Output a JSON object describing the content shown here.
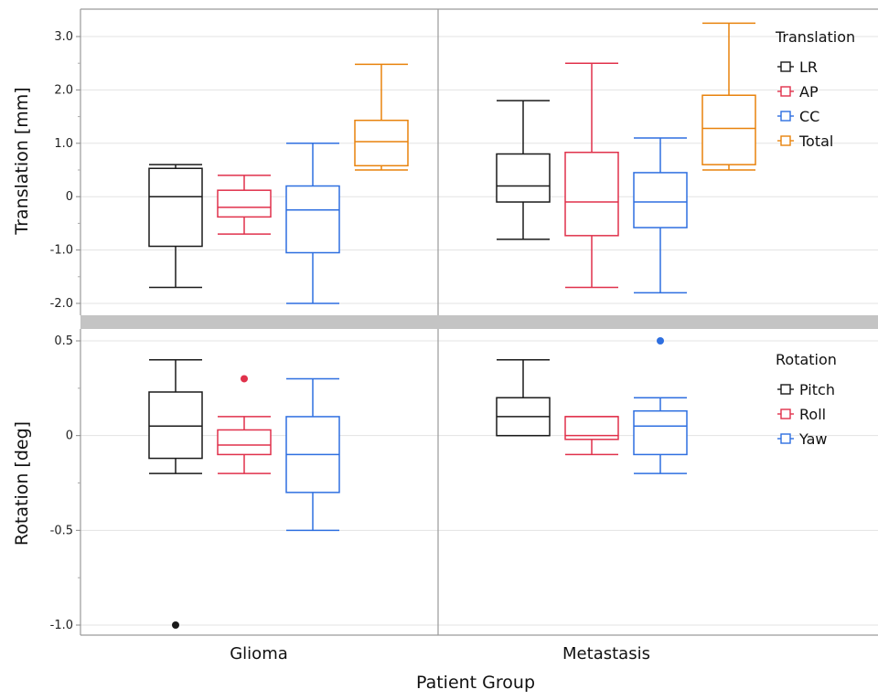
{
  "chart_data": {
    "type": "box",
    "xlabel": "Patient Group",
    "groups": [
      "Glioma",
      "Metastasis"
    ],
    "colors": {
      "LR": "#1a1a1a",
      "AP": "#e0314b",
      "CC": "#2e6fe0",
      "Total": "#e8820c",
      "Pitch": "#1a1a1a",
      "Roll": "#e0314b",
      "Yaw": "#2e6fe0"
    },
    "panels": [
      {
        "id": "translation",
        "ylabel": "Translation [mm]",
        "ylim": [
          -2.2,
          3.5
        ],
        "ticks": [
          {
            "value": 3.0,
            "label": "3.0"
          },
          {
            "value": 2.0,
            "label": "2.0"
          },
          {
            "value": 1.0,
            "label": "1.0"
          },
          {
            "value": 0,
            "label": "0"
          },
          {
            "value": -1.0,
            "label": "-1.0"
          },
          {
            "value": -2.0,
            "label": "-2.0"
          }
        ],
        "minor_ticks": [
          2.5,
          1.5,
          0.5,
          -0.5,
          -1.5
        ],
        "legend_title": "Translation",
        "series": [
          {
            "name": "LR",
            "boxes": [
              {
                "min": -1.7,
                "q1": -0.93,
                "median": 0.0,
                "q3": 0.53,
                "max": 0.6,
                "outliers": []
              },
              {
                "min": -0.8,
                "q1": -0.1,
                "median": 0.2,
                "q3": 0.8,
                "max": 1.8,
                "outliers": []
              }
            ]
          },
          {
            "name": "AP",
            "boxes": [
              {
                "min": -0.7,
                "q1": -0.38,
                "median": -0.2,
                "q3": 0.12,
                "max": 0.4,
                "outliers": []
              },
              {
                "min": -1.7,
                "q1": -0.73,
                "median": -0.1,
                "q3": 0.83,
                "max": 2.5,
                "outliers": []
              }
            ]
          },
          {
            "name": "CC",
            "boxes": [
              {
                "min": -2.0,
                "q1": -1.05,
                "median": -0.25,
                "q3": 0.2,
                "max": 1.0,
                "outliers": []
              },
              {
                "min": -1.8,
                "q1": -0.58,
                "median": -0.1,
                "q3": 0.45,
                "max": 1.1,
                "outliers": []
              }
            ]
          },
          {
            "name": "Total",
            "boxes": [
              {
                "min": 0.5,
                "q1": 0.58,
                "median": 1.03,
                "q3": 1.43,
                "max": 2.48,
                "outliers": []
              },
              {
                "min": 0.5,
                "q1": 0.6,
                "median": 1.28,
                "q3": 1.9,
                "max": 3.25,
                "outliers": []
              }
            ]
          }
        ]
      },
      {
        "id": "rotation",
        "ylabel": "Rotation [deg]",
        "ylim": [
          -1.05,
          0.55
        ],
        "ticks": [
          {
            "value": 0.5,
            "label": "0.5"
          },
          {
            "value": 0,
            "label": "0"
          },
          {
            "value": -0.5,
            "label": "-0.5"
          },
          {
            "value": -1.0,
            "label": "-1.0"
          }
        ],
        "minor_ticks": [
          0.25,
          -0.25,
          -0.75
        ],
        "legend_title": "Rotation",
        "series": [
          {
            "name": "Pitch",
            "boxes": [
              {
                "min": -0.2,
                "q1": -0.12,
                "median": 0.05,
                "q3": 0.23,
                "max": 0.4,
                "outliers": [
                  -1.0
                ]
              },
              {
                "min": 0.0,
                "q1": 0.0,
                "median": 0.1,
                "q3": 0.2,
                "max": 0.4,
                "outliers": []
              }
            ]
          },
          {
            "name": "Roll",
            "boxes": [
              {
                "min": -0.2,
                "q1": -0.1,
                "median": -0.05,
                "q3": 0.03,
                "max": 0.1,
                "outliers": [
                  0.3
                ]
              },
              {
                "min": -0.1,
                "q1": -0.02,
                "median": 0.0,
                "q3": 0.1,
                "max": 0.1,
                "outliers": []
              }
            ]
          },
          {
            "name": "Yaw",
            "boxes": [
              {
                "min": -0.5,
                "q1": -0.3,
                "median": -0.1,
                "q3": 0.1,
                "max": 0.3,
                "outliers": []
              },
              {
                "min": -0.2,
                "q1": -0.1,
                "median": 0.05,
                "q3": 0.13,
                "max": 0.2,
                "outliers": [
                  0.5
                ]
              }
            ]
          }
        ]
      }
    ]
  }
}
